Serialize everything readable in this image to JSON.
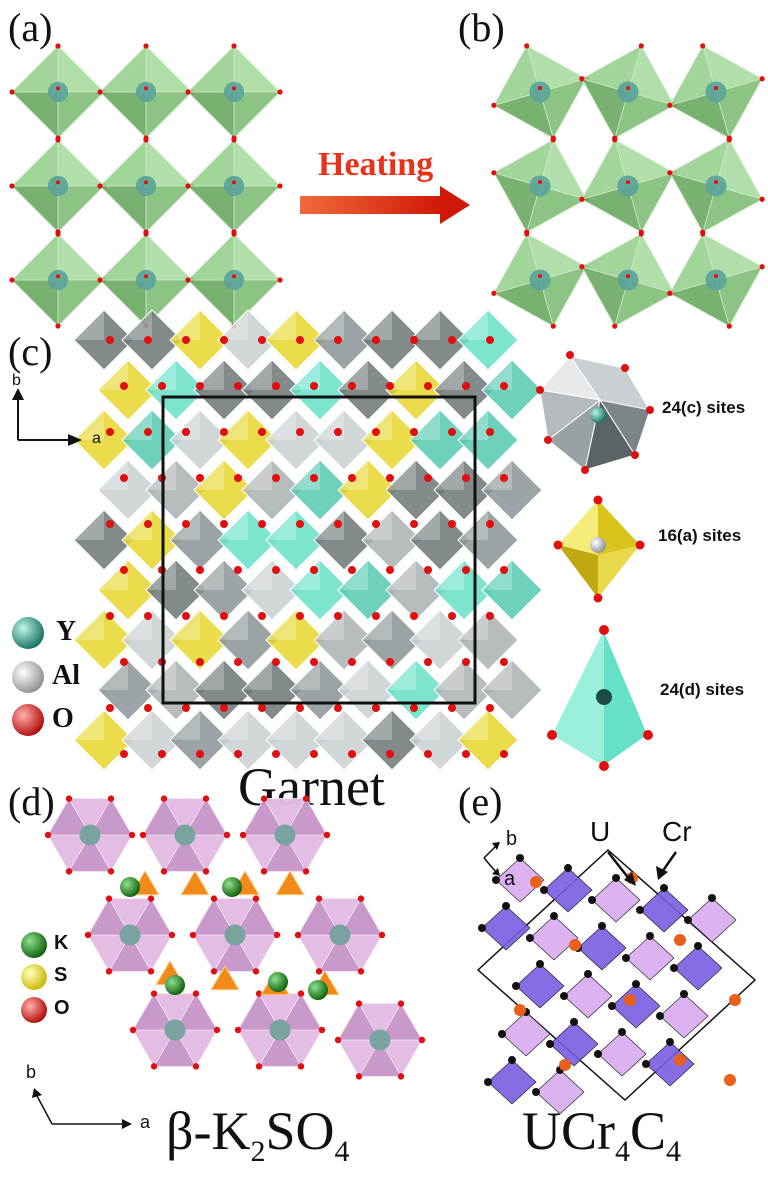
{
  "panels": {
    "a": "(a)",
    "b": "(b)",
    "c": "(c)",
    "d": "(d)",
    "e": "(e)"
  },
  "arrow_heating": {
    "label": "Heating",
    "color": "#e8321a"
  },
  "garnet": {
    "title": "Garnet",
    "axis_a": "a",
    "axis_b": "b",
    "legend": [
      {
        "symbol": "Y",
        "color": "#2a9c86"
      },
      {
        "symbol": "Al",
        "color": "#e8e8e8"
      },
      {
        "symbol": "O",
        "color": "#e01010"
      }
    ],
    "sites": [
      {
        "label": "24(c) sites",
        "color": "#b9bfc2"
      },
      {
        "label": "16(a) sites",
        "color": "#e6d62c"
      },
      {
        "label": "24(d) sites",
        "color": "#66e0c6"
      }
    ]
  },
  "k2so4": {
    "title_pre": "β-K",
    "title_sub1": "2",
    "title_mid": "SO",
    "title_sub2": "4",
    "axis_a": "a",
    "axis_b": "b",
    "legend": [
      {
        "symbol": "K",
        "color": "#1a8a1a"
      },
      {
        "symbol": "S",
        "color": "#f0e21a"
      },
      {
        "symbol": "O",
        "color": "#e01010"
      }
    ]
  },
  "ucr4c4": {
    "title_pre": "UCr",
    "title_sub1": "4",
    "title_mid": "C",
    "title_sub2": "4",
    "axis_a": "a",
    "axis_b": "b",
    "label_u": "U",
    "label_cr": "Cr"
  }
}
